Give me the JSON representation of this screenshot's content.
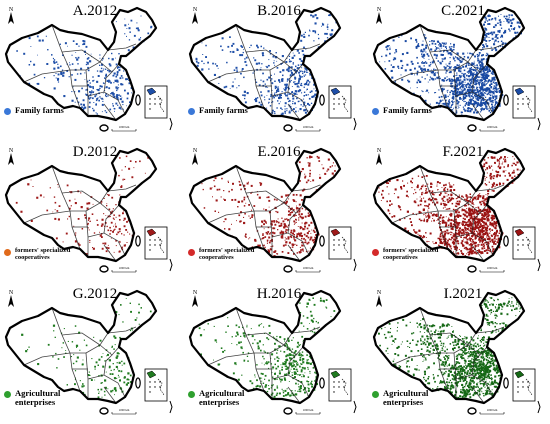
{
  "panels": [
    {
      "title": "A.2012",
      "legend": "Family farms",
      "color": "#1f4fa8",
      "density": 320
    },
    {
      "title": "B.2016",
      "legend": "Family farms",
      "color": "#1f4fa8",
      "density": 460
    },
    {
      "title": "C.2021",
      "legend": "Family farms",
      "color": "#1a4aa3",
      "density": 1300
    },
    {
      "title": "D.2012",
      "legend": "formers' specialized cooperatives",
      "color": "#9e1a1a",
      "density": 180,
      "dot_color": "#e06a1b"
    },
    {
      "title": "E.2016",
      "legend": "formers' specialized cooperatives",
      "color": "#9e1a1a",
      "density": 420
    },
    {
      "title": "F.2021",
      "legend": "formers' specialized cooperatives",
      "color": "#9a1212",
      "density": 1300
    },
    {
      "title": "G.2012",
      "legend": "Agricultural enterprises",
      "color": "#1f7a1f",
      "density": 170
    },
    {
      "title": "H.2016",
      "legend": "Agricultural enterprises",
      "color": "#1f7a1f",
      "density": 430
    },
    {
      "title": "I.2021",
      "legend": "Agricultural enterprises",
      "color": "#156815",
      "density": 1200
    }
  ],
  "map": {
    "north_label": "N",
    "scale_label": "1000 km",
    "inset_label": "South China Sea"
  }
}
